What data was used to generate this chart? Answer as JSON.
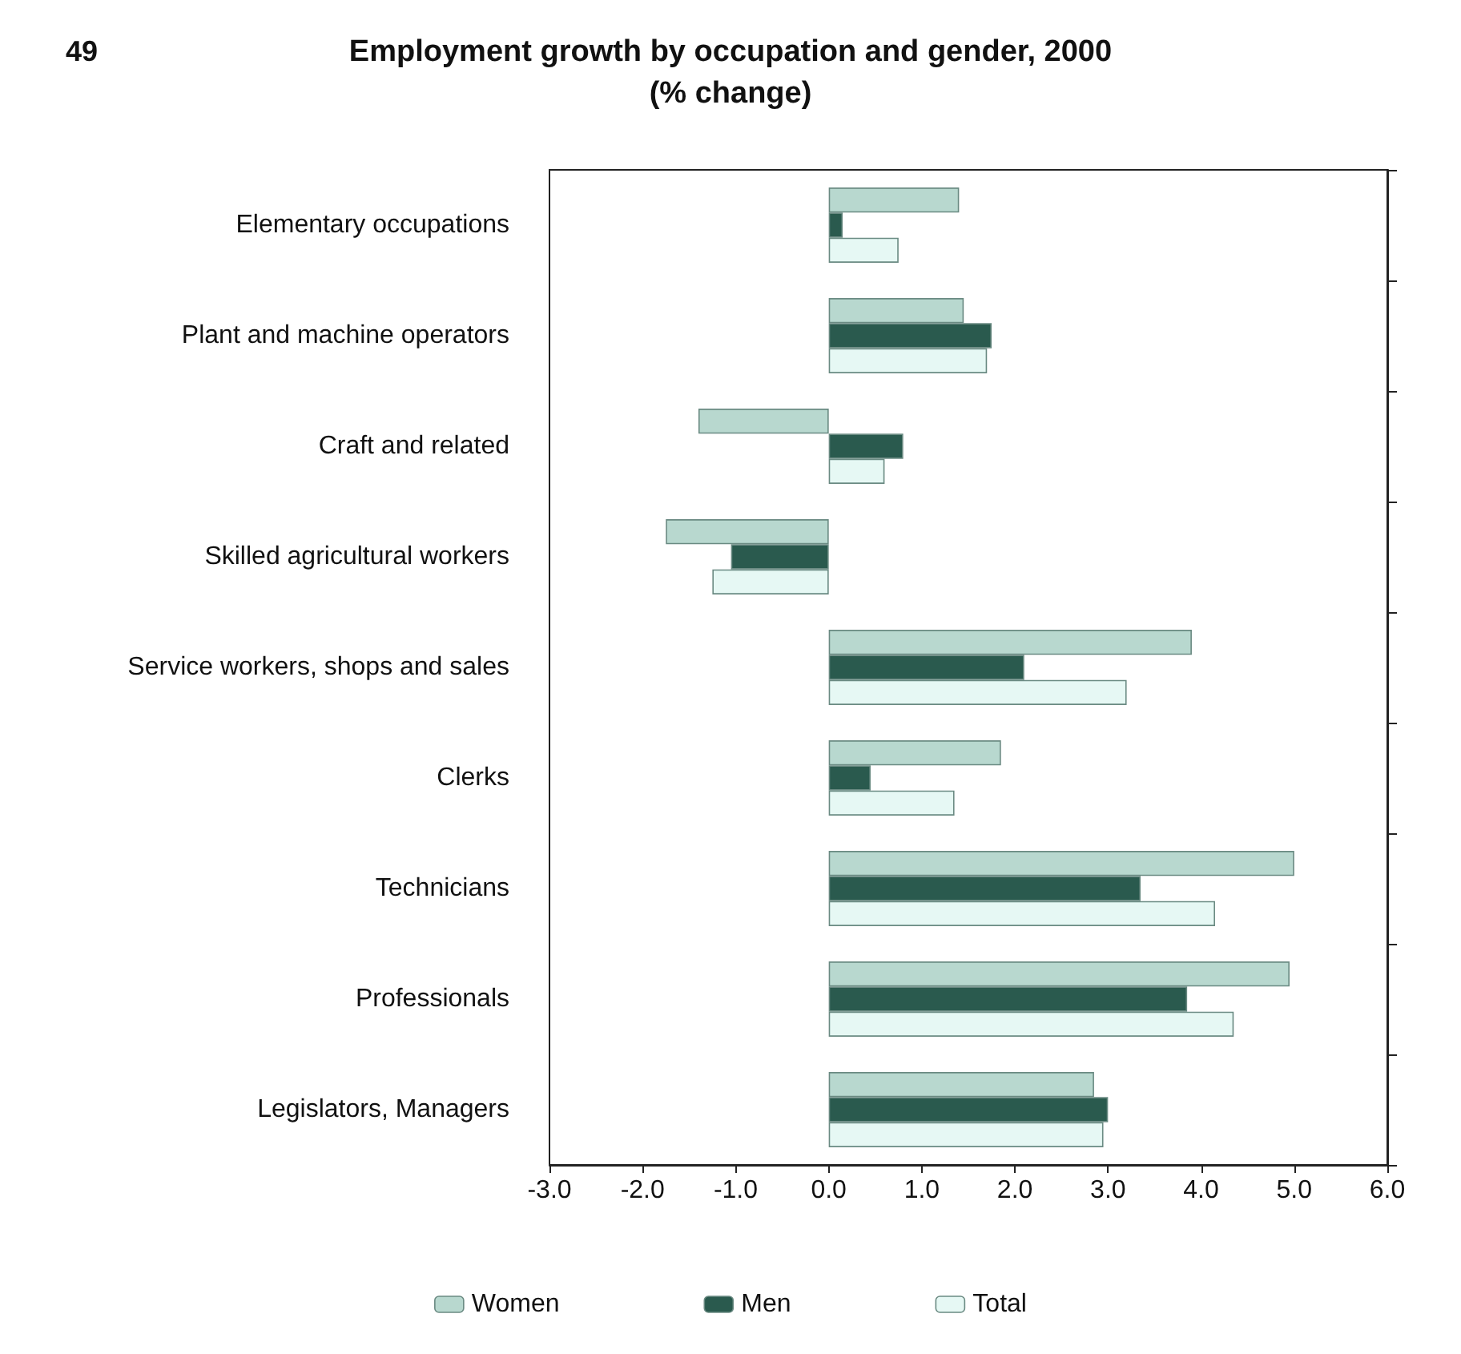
{
  "chart_data": {
    "type": "bar",
    "orientation": "horizontal",
    "title": "Employment growth by occupation and gender, 2000",
    "subtitle": "(% change)",
    "annotations": [
      "49"
    ],
    "categories": [
      "Elementary occupations",
      "Plant and machine operators",
      "Craft and related",
      "Skilled agricultural workers",
      "Service workers, shops and sales",
      "Clerks",
      "Technicians",
      "Professionals",
      "Legislators, Managers"
    ],
    "series": [
      {
        "name": "Women",
        "color": "#b8d8cf",
        "values": [
          1.4,
          1.45,
          -1.4,
          -1.75,
          3.9,
          1.85,
          5.0,
          4.95,
          2.85
        ]
      },
      {
        "name": "Men",
        "color": "#2a5a4e",
        "values": [
          0.15,
          1.75,
          0.8,
          -1.05,
          2.1,
          0.45,
          3.35,
          3.85,
          3.0
        ]
      },
      {
        "name": "Total",
        "color": "#e6f8f4",
        "values": [
          0.75,
          1.7,
          0.6,
          -1.25,
          3.2,
          1.35,
          4.15,
          4.35,
          2.95
        ]
      }
    ],
    "xlim": [
      -3,
      6
    ],
    "xticks": [
      {
        "value": -3,
        "label": "-3.0"
      },
      {
        "value": -2,
        "label": "-2.0"
      },
      {
        "value": -1,
        "label": "-1.0"
      },
      {
        "value": 0,
        "label": "0.0"
      },
      {
        "value": 1,
        "label": "1.0"
      },
      {
        "value": 2,
        "label": "2.0"
      },
      {
        "value": 3,
        "label": "3.0"
      },
      {
        "value": 4,
        "label": "4.0"
      },
      {
        "value": 5,
        "label": "5.0"
      },
      {
        "value": 6,
        "label": "6.0"
      }
    ],
    "grid": false,
    "legend": "bottom"
  }
}
